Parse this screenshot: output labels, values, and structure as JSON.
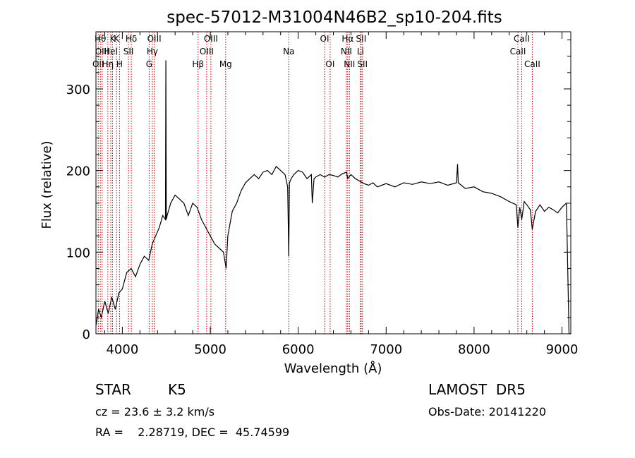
{
  "chart_data": {
    "type": "line",
    "title": "spec-57012-M31004N46B2_sp10-204.fits",
    "xlabel": "Wavelength (Å)",
    "ylabel": "Flux (relative)",
    "xlim": [
      3700,
      9100
    ],
    "ylim": [
      0,
      370
    ],
    "xticks": [
      4000,
      5000,
      6000,
      7000,
      8000,
      9000
    ],
    "yticks": [
      0,
      100,
      200,
      300
    ],
    "line_color": "#000000",
    "marker_color": "#c00000",
    "series": [
      {
        "x": [
          3700,
          3730,
          3760,
          3800,
          3840,
          3880,
          3920,
          3960,
          4000,
          4050,
          4100,
          4150,
          4200,
          4250,
          4300,
          4340,
          4380,
          4420,
          4460,
          4490,
          4495,
          4500,
          4510,
          4550,
          4600,
          4650,
          4700,
          4750,
          4800,
          4850,
          4900,
          4950,
          5000,
          5050,
          5100,
          5150,
          5180,
          5200,
          5250,
          5300,
          5350,
          5400,
          5450,
          5500,
          5550,
          5600,
          5650,
          5700,
          5750,
          5800,
          5850,
          5880,
          5893,
          5900,
          5920,
          5950,
          6000,
          6050,
          6100,
          6150,
          6160,
          6180,
          6200,
          6250,
          6300,
          6350,
          6400,
          6450,
          6500,
          6550,
          6563,
          6600,
          6650,
          6700,
          6750,
          6800,
          6850,
          6900,
          6950,
          7000,
          7100,
          7200,
          7300,
          7400,
          7500,
          7600,
          7700,
          7800,
          7812,
          7820,
          7900,
          8000,
          8100,
          8200,
          8300,
          8400,
          8480,
          8498,
          8520,
          8542,
          8570,
          8600,
          8640,
          8662,
          8700,
          8750,
          8800,
          8850,
          8900,
          8950,
          9000,
          9050,
          9080,
          9100
        ],
        "y": [
          10,
          30,
          20,
          40,
          25,
          45,
          30,
          50,
          55,
          75,
          80,
          70,
          85,
          95,
          90,
          110,
          120,
          130,
          145,
          140,
          335,
          140,
          145,
          160,
          170,
          165,
          160,
          145,
          160,
          155,
          140,
          130,
          120,
          110,
          105,
          100,
          80,
          120,
          150,
          160,
          175,
          185,
          190,
          195,
          190,
          198,
          200,
          195,
          205,
          200,
          195,
          180,
          95,
          185,
          190,
          195,
          200,
          198,
          190,
          195,
          160,
          190,
          192,
          195,
          192,
          195,
          194,
          192,
          196,
          198,
          190,
          195,
          190,
          187,
          184,
          182,
          185,
          180,
          182,
          184,
          180,
          185,
          183,
          186,
          184,
          186,
          182,
          185,
          208,
          185,
          178,
          180,
          174,
          172,
          168,
          162,
          158,
          130,
          155,
          140,
          162,
          158,
          152,
          128,
          150,
          158,
          150,
          155,
          152,
          148,
          155,
          160,
          0,
          0
        ]
      }
    ],
    "lines": [
      {
        "wl": 3726,
        "label": "OII",
        "row": 3
      },
      {
        "wl": 3750,
        "label": "Hθ",
        "row": 1
      },
      {
        "wl": 3770,
        "label": "OIII",
        "row": 2
      },
      {
        "wl": 3835,
        "label": "Hη",
        "row": 3
      },
      {
        "wl": 3869,
        "label": "HeI",
        "row": 2
      },
      {
        "wl": 3889,
        "label": "K",
        "row": 1
      },
      {
        "wl": 3934,
        "label": "K",
        "row": 1
      },
      {
        "wl": 3968,
        "label": "H",
        "row": 3
      },
      {
        "wl": 4070,
        "label": "SII",
        "row": 2
      },
      {
        "wl": 4102,
        "label": "Hδ",
        "row": 1
      },
      {
        "wl": 4305,
        "label": "G",
        "row": 3
      },
      {
        "wl": 4341,
        "label": "Hγ",
        "row": 2
      },
      {
        "wl": 4363,
        "label": "OIII",
        "row": 1
      },
      {
        "wl": 4861,
        "label": "Hβ",
        "row": 3
      },
      {
        "wl": 4959,
        "label": "OIII",
        "row": 2
      },
      {
        "wl": 5007,
        "label": "OIII",
        "row": 1
      },
      {
        "wl": 5175,
        "label": "Mg",
        "row": 3
      },
      {
        "wl": 5893,
        "label": "Na",
        "row": 2
      },
      {
        "wl": 6300,
        "label": "OI",
        "row": 1
      },
      {
        "wl": 6363,
        "label": "OI",
        "row": 3
      },
      {
        "wl": 6548,
        "label": "NII",
        "row": 2
      },
      {
        "wl": 6563,
        "label": "Hα",
        "row": 1
      },
      {
        "wl": 6583,
        "label": "NII",
        "row": 3
      },
      {
        "wl": 6708,
        "label": "Li",
        "row": 2
      },
      {
        "wl": 6716,
        "label": "SII",
        "row": 1
      },
      {
        "wl": 6731,
        "label": "SII",
        "row": 3
      },
      {
        "wl": 8498,
        "label": "CaII",
        "row": 2
      },
      {
        "wl": 8542,
        "label": "CaII",
        "row": 1
      },
      {
        "wl": 8662,
        "label": "CaII",
        "row": 3
      }
    ]
  },
  "info": {
    "class_label": "STAR",
    "subclass": "K5",
    "survey": "LAMOST  DR5",
    "cz": "cz = 23.6 ± 3.2 km/s",
    "obs_date": "Obs-Date: 20141220",
    "radec": "RA =    2.28719, DEC =  45.74599"
  }
}
